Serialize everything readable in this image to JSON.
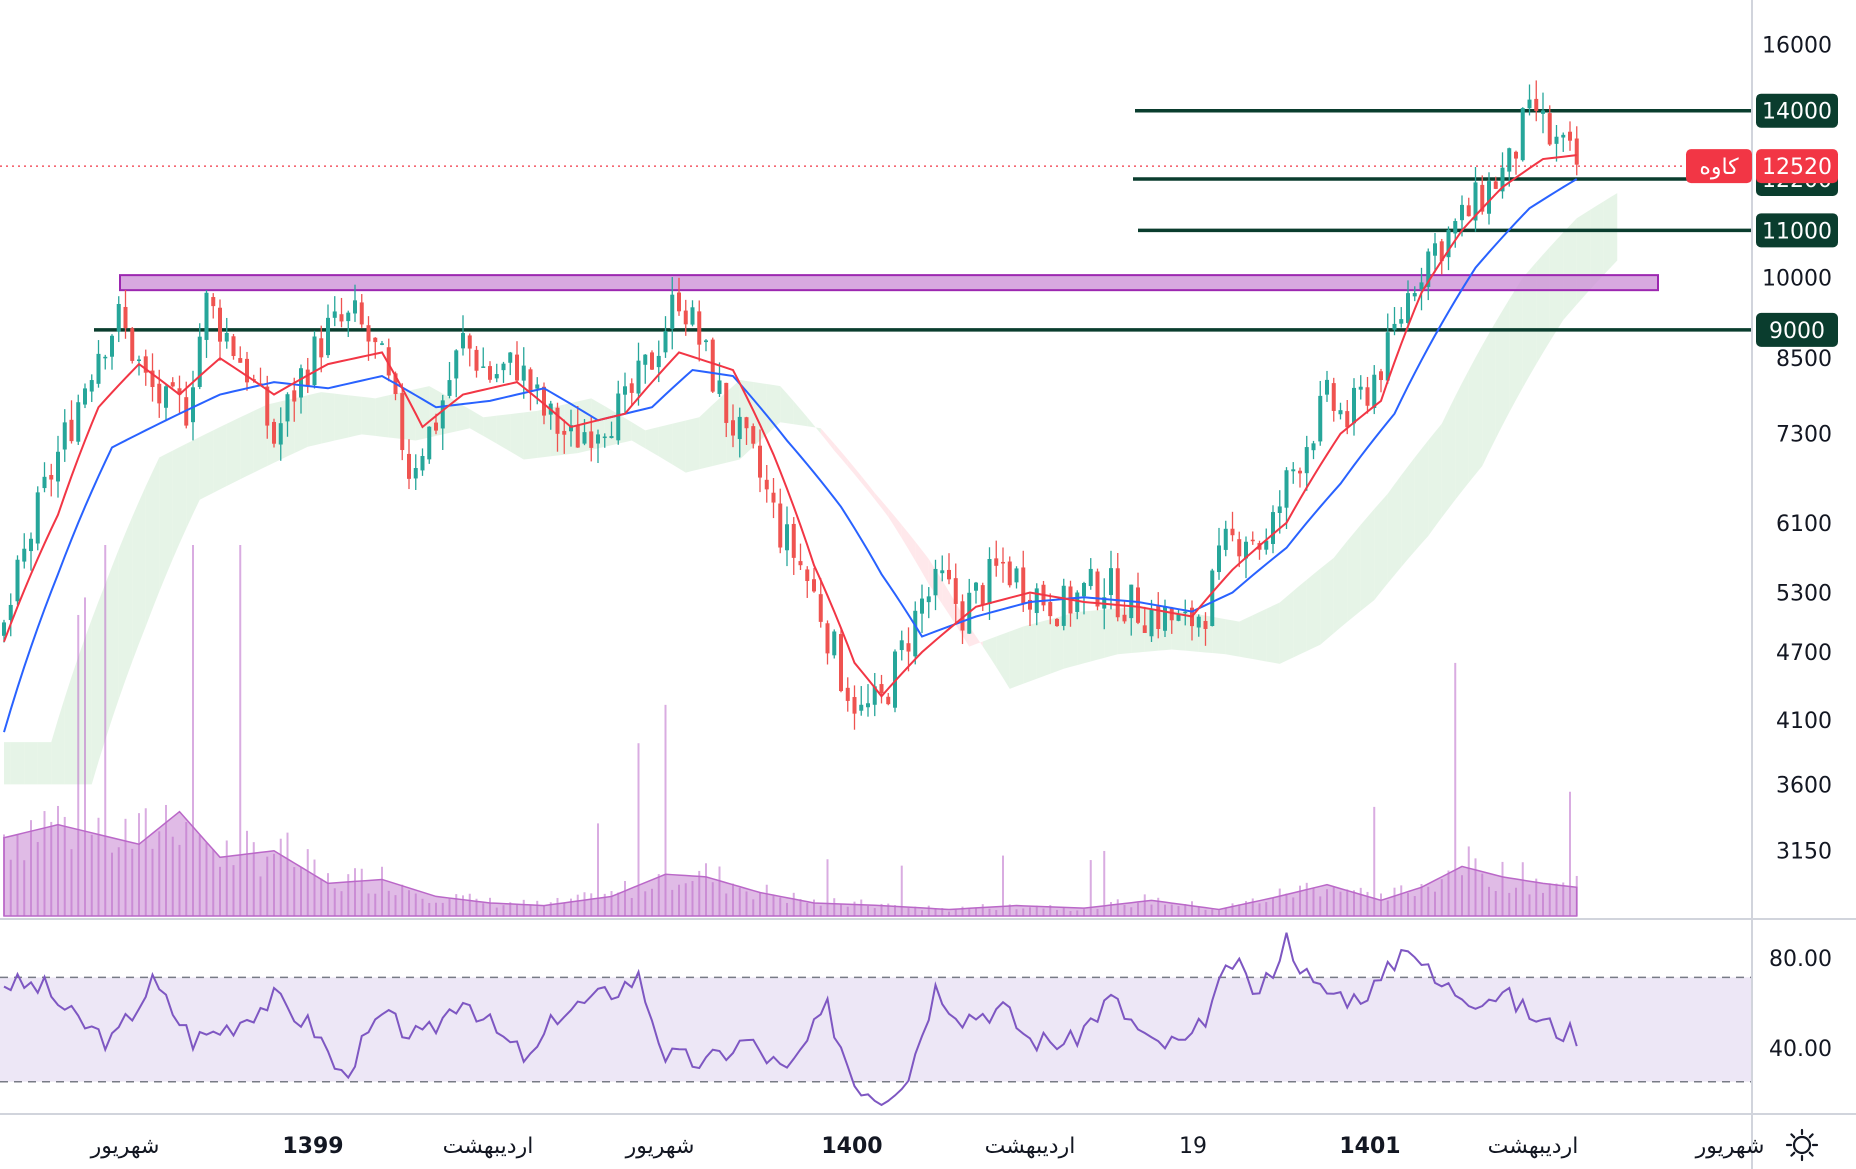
{
  "chart_data": [
    {
      "type": "candlestick",
      "symbol_label": "کاوه",
      "last_price": "12520",
      "price_axis": {
        "scale": "log",
        "range": [
          2750,
          17500
        ],
        "ticks": [
          "16000",
          "10000",
          "8500",
          "7300",
          "6100",
          "5300",
          "4700",
          "4100",
          "3600",
          "3150"
        ]
      },
      "levels": [
        {
          "value": 14000,
          "label": "14000"
        },
        {
          "value": 12200,
          "label": "12200"
        },
        {
          "value": 11000,
          "label": "11000"
        },
        {
          "value": 9000,
          "label": "9000"
        }
      ],
      "resistance_zone": {
        "low": 9750,
        "high": 10050
      },
      "time_axis": [
        {
          "label": "شهریور",
          "bold": false
        },
        {
          "label": "1399",
          "bold": true
        },
        {
          "label": "اردیبهشت",
          "bold": false
        },
        {
          "label": "شهریور",
          "bold": false
        },
        {
          "label": "1400",
          "bold": true
        },
        {
          "label": "اردیبهشت",
          "bold": false
        },
        {
          "label": "19",
          "bold": false
        },
        {
          "label": "1401",
          "bold": true
        },
        {
          "label": "اردیبهشت",
          "bold": false
        },
        {
          "label": "شهریور",
          "bold": false
        }
      ],
      "price_path": [
        [
          0,
          4900
        ],
        [
          6,
          6500
        ],
        [
          10,
          7500
        ],
        [
          14,
          8700
        ],
        [
          17,
          9200
        ],
        [
          21,
          8100
        ],
        [
          24,
          7700
        ],
        [
          27,
          7700
        ],
        [
          30,
          9500
        ],
        [
          33,
          8900
        ],
        [
          36,
          8300
        ],
        [
          40,
          7200
        ],
        [
          44,
          8200
        ],
        [
          48,
          9000
        ],
        [
          52,
          9200
        ],
        [
          56,
          8400
        ],
        [
          60,
          6800
        ],
        [
          64,
          7500
        ],
        [
          68,
          8800
        ],
        [
          72,
          8200
        ],
        [
          76,
          8400
        ],
        [
          80,
          7600
        ],
        [
          84,
          7200
        ],
        [
          88,
          7500
        ],
        [
          92,
          7700
        ],
        [
          96,
          8500
        ],
        [
          100,
          9700
        ],
        [
          103,
          8800
        ],
        [
          107,
          7600
        ],
        [
          111,
          6900
        ],
        [
          115,
          6000
        ],
        [
          118,
          5600
        ],
        [
          121,
          5100
        ],
        [
          124,
          4500
        ],
        [
          127,
          4150
        ],
        [
          130,
          4250
        ],
        [
          133,
          4700
        ],
        [
          136,
          5200
        ],
        [
          139,
          5400
        ],
        [
          142,
          5100
        ],
        [
          145,
          5350
        ],
        [
          148,
          5600
        ],
        [
          151,
          5400
        ],
        [
          154,
          5250
        ],
        [
          157,
          5150
        ],
        [
          160,
          5300
        ],
        [
          163,
          5400
        ],
        [
          166,
          5200
        ],
        [
          169,
          5100
        ],
        [
          172,
          5050
        ],
        [
          175,
          4950
        ],
        [
          178,
          5150
        ],
        [
          181,
          5800
        ],
        [
          184,
          6000
        ],
        [
          187,
          5800
        ],
        [
          190,
          6600
        ],
        [
          193,
          7200
        ],
        [
          196,
          7800
        ],
        [
          199,
          7500
        ],
        [
          202,
          8000
        ],
        [
          205,
          8600
        ],
        [
          207,
          9300
        ],
        [
          209,
          10000
        ],
        [
          211,
          10500
        ],
        [
          214,
          10900
        ],
        [
          217,
          11400
        ],
        [
          220,
          12000
        ],
        [
          223,
          12500
        ],
        [
          225,
          13500
        ],
        [
          227,
          14000
        ],
        [
          229,
          13200
        ],
        [
          231,
          12900
        ],
        [
          233,
          12520
        ]
      ],
      "ma_fast_path": [
        [
          0,
          4800
        ],
        [
          8,
          6200
        ],
        [
          14,
          7700
        ],
        [
          20,
          8400
        ],
        [
          26,
          7900
        ],
        [
          32,
          8500
        ],
        [
          40,
          7900
        ],
        [
          48,
          8400
        ],
        [
          56,
          8600
        ],
        [
          62,
          7400
        ],
        [
          68,
          7900
        ],
        [
          76,
          8100
        ],
        [
          84,
          7400
        ],
        [
          92,
          7600
        ],
        [
          100,
          8600
        ],
        [
          108,
          8300
        ],
        [
          114,
          7000
        ],
        [
          120,
          5600
        ],
        [
          126,
          4600
        ],
        [
          130,
          4300
        ],
        [
          136,
          4700
        ],
        [
          144,
          5150
        ],
        [
          152,
          5300
        ],
        [
          160,
          5200
        ],
        [
          168,
          5150
        ],
        [
          176,
          5050
        ],
        [
          182,
          5550
        ],
        [
          190,
          6100
        ],
        [
          198,
          7300
        ],
        [
          204,
          7800
        ],
        [
          210,
          9700
        ],
        [
          216,
          11000
        ],
        [
          222,
          12000
        ],
        [
          228,
          12700
        ],
        [
          233,
          12800
        ]
      ],
      "ma_slow_path": [
        [
          0,
          4000
        ],
        [
          8,
          5500
        ],
        [
          16,
          7100
        ],
        [
          24,
          7500
        ],
        [
          32,
          7900
        ],
        [
          40,
          8100
        ],
        [
          48,
          8000
        ],
        [
          56,
          8200
        ],
        [
          64,
          7700
        ],
        [
          72,
          7800
        ],
        [
          80,
          8000
        ],
        [
          88,
          7500
        ],
        [
          96,
          7700
        ],
        [
          102,
          8300
        ],
        [
          108,
          8200
        ],
        [
          116,
          7200
        ],
        [
          124,
          6300
        ],
        [
          130,
          5500
        ],
        [
          136,
          4850
        ],
        [
          144,
          5050
        ],
        [
          152,
          5200
        ],
        [
          160,
          5250
        ],
        [
          168,
          5200
        ],
        [
          176,
          5100
        ],
        [
          182,
          5300
        ],
        [
          190,
          5800
        ],
        [
          198,
          6600
        ],
        [
          206,
          7600
        ],
        [
          212,
          8900
        ],
        [
          218,
          10200
        ],
        [
          226,
          11500
        ],
        [
          233,
          12200
        ]
      ],
      "volume_scale_max": 650,
      "volume_avg_path": [
        [
          0,
          60
        ],
        [
          8,
          70
        ],
        [
          12,
          65
        ],
        [
          20,
          55
        ],
        [
          26,
          80
        ],
        [
          32,
          45
        ],
        [
          40,
          50
        ],
        [
          48,
          25
        ],
        [
          56,
          28
        ],
        [
          64,
          15
        ],
        [
          72,
          10
        ],
        [
          80,
          8
        ],
        [
          90,
          15
        ],
        [
          98,
          32
        ],
        [
          104,
          30
        ],
        [
          112,
          18
        ],
        [
          120,
          10
        ],
        [
          130,
          8
        ],
        [
          140,
          5
        ],
        [
          150,
          8
        ],
        [
          160,
          6
        ],
        [
          170,
          12
        ],
        [
          180,
          5
        ],
        [
          188,
          14
        ],
        [
          196,
          24
        ],
        [
          204,
          12
        ],
        [
          210,
          22
        ],
        [
          216,
          38
        ],
        [
          222,
          30
        ],
        [
          228,
          25
        ],
        [
          233,
          22
        ]
      ],
      "rsi": {
        "levels": [
          "80.00",
          "40.00"
        ],
        "overbought": 70,
        "oversold": 30,
        "range": [
          18,
          92
        ],
        "path": [
          [
            0,
            68
          ],
          [
            6,
            66
          ],
          [
            10,
            55
          ],
          [
            16,
            45
          ],
          [
            22,
            68
          ],
          [
            28,
            46
          ],
          [
            34,
            52
          ],
          [
            40,
            62
          ],
          [
            46,
            50
          ],
          [
            50,
            32
          ],
          [
            56,
            55
          ],
          [
            62,
            46
          ],
          [
            68,
            63
          ],
          [
            74,
            46
          ],
          [
            78,
            38
          ],
          [
            82,
            56
          ],
          [
            88,
            62
          ],
          [
            94,
            70
          ],
          [
            98,
            40
          ],
          [
            104,
            37
          ],
          [
            110,
            46
          ],
          [
            116,
            33
          ],
          [
            122,
            58
          ],
          [
            126,
            30
          ],
          [
            130,
            24
          ],
          [
            134,
            33
          ],
          [
            138,
            66
          ],
          [
            142,
            55
          ],
          [
            148,
            58
          ],
          [
            152,
            46
          ],
          [
            158,
            45
          ],
          [
            164,
            62
          ],
          [
            170,
            44
          ],
          [
            176,
            45
          ],
          [
            182,
            76
          ],
          [
            186,
            63
          ],
          [
            190,
            85
          ],
          [
            194,
            66
          ],
          [
            200,
            62
          ],
          [
            204,
            68
          ],
          [
            208,
            84
          ],
          [
            212,
            68
          ],
          [
            218,
            62
          ],
          [
            222,
            64
          ],
          [
            226,
            56
          ],
          [
            230,
            50
          ],
          [
            233,
            48
          ]
        ]
      },
      "colors": {
        "up": "#26a69a",
        "down": "#ef5350",
        "ma_fast": "#f23645",
        "ma_slow": "#2962ff",
        "level_line": "#0a3d2e",
        "zone_fill": "#ce93d8",
        "zone_stroke": "#9c27b0",
        "cloud_green": "#c8e6c9",
        "cloud_red": "#ffcdd2",
        "volume": "#ba68c8",
        "rsi_line": "#7e57c2",
        "rsi_band": "#ede7f6",
        "last_price": "#f23645"
      }
    }
  ]
}
